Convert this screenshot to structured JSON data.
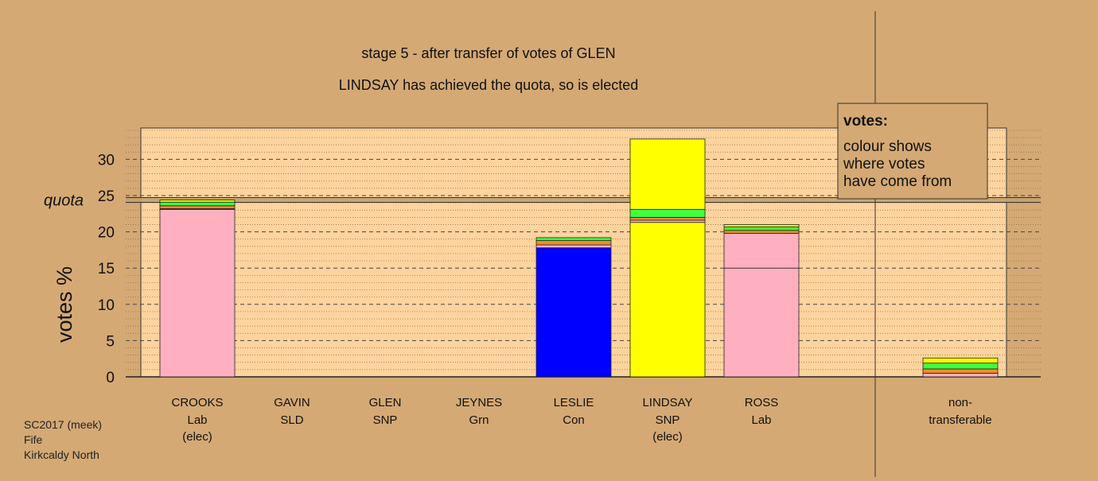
{
  "chart_data": {
    "type": "bar",
    "stacked": true,
    "title": "stage 5 - after transfer of votes of GLEN",
    "subtitle": "LINDSAY has achieved the quota, so is elected",
    "ylabel": "votes %",
    "ylim": [
      0,
      34
    ],
    "yticks": [
      0,
      5,
      10,
      15,
      20,
      25,
      30
    ],
    "quota_label": "quota",
    "quota_value": 24.4,
    "grid": "dashed horizontal",
    "legend_position": "top-right",
    "legend": {
      "title": "votes:",
      "lines": [
        "colour shows",
        "where votes",
        "have come from"
      ]
    },
    "categories": [
      {
        "name": "CROOKS",
        "party": "Lab",
        "note": "(elec)"
      },
      {
        "name": "GAVIN",
        "party": "SLD",
        "note": ""
      },
      {
        "name": "GLEN",
        "party": "SNP",
        "note": ""
      },
      {
        "name": "JEYNES",
        "party": "Grn",
        "note": ""
      },
      {
        "name": "LESLIE",
        "party": "Con",
        "note": ""
      },
      {
        "name": "LINDSAY",
        "party": "SNP",
        "note": "(elec)"
      },
      {
        "name": "ROSS",
        "party": "Lab",
        "note": ""
      },
      {
        "name": "non-",
        "party": "transferable",
        "note": ""
      }
    ],
    "bars": [
      {
        "segments": [
          {
            "color": "#ffb0c0",
            "value": 23.1
          },
          {
            "color": "#ff8a8a",
            "value": 0.1
          },
          {
            "color": "#f08c2a",
            "value": 0.4
          },
          {
            "color": "#40ff40",
            "value": 0.5
          },
          {
            "color": "#ffff00",
            "value": 0.3
          }
        ]
      },
      {
        "segments": []
      },
      {
        "segments": []
      },
      {
        "segments": []
      },
      {
        "segments": [
          {
            "color": "#0000ff",
            "value": 17.8
          },
          {
            "color": "#ffb0c0",
            "value": 0.4
          },
          {
            "color": "#f08c2a",
            "value": 0.6
          },
          {
            "color": "#40ff40",
            "value": 0.4
          }
        ]
      },
      {
        "segments": [
          {
            "color": "#ffff00",
            "value": 21.3
          },
          {
            "color": "#ffb0c0",
            "value": 0.3
          },
          {
            "color": "#f08c2a",
            "value": 0.4
          },
          {
            "color": "#40ff40",
            "value": 1.1
          },
          {
            "color": "#ffff00",
            "value": 9.7
          }
        ]
      },
      {
        "segments": [
          {
            "color": "#ffb0c0",
            "value": 15.0
          },
          {
            "color": "#ffb0c0",
            "value": 4.8
          },
          {
            "color": "#f08c2a",
            "value": 0.4
          },
          {
            "color": "#40ff40",
            "value": 0.5
          },
          {
            "color": "#ffff00",
            "value": 0.3
          }
        ]
      },
      {
        "segments": [
          {
            "color": "#ffb0c0",
            "value": 0.5
          },
          {
            "color": "#f08c2a",
            "value": 0.6
          },
          {
            "color": "#40ff40",
            "value": 0.8
          },
          {
            "color": "#ffff00",
            "value": 0.7
          }
        ]
      }
    ]
  },
  "footer": {
    "line1": "SC2017 (meek)",
    "line2": "Fife",
    "line3": "Kirkcaldy North"
  },
  "colors": {
    "background": "#d4a974",
    "plot_area": "#fdd39e",
    "quota_band": "#c4a070"
  }
}
